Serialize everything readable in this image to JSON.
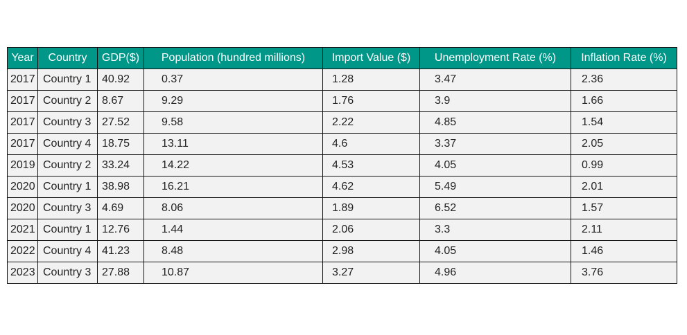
{
  "chart_data": {
    "type": "table",
    "columns": [
      "Year",
      "Country",
      "GDP($)",
      "Population (hundred millions)",
      "Import Value ($)",
      "Unemployment Rate (%)",
      "Inflation Rate (%)"
    ],
    "rows": [
      [
        "2017",
        "Country 1",
        "40.92",
        "0.37",
        "1.28",
        "3.47",
        "2.36"
      ],
      [
        "2017",
        "Country 2",
        "8.67",
        "9.29",
        "1.76",
        "3.9",
        "1.66"
      ],
      [
        "2017",
        "Country 3",
        "27.52",
        "9.58",
        "2.22",
        "4.85",
        "1.54"
      ],
      [
        "2017",
        "Country 4",
        "18.75",
        "13.11",
        "4.6",
        "3.37",
        "2.05"
      ],
      [
        "2019",
        "Country 2",
        "33.24",
        "14.22",
        "4.53",
        "4.05",
        "0.99"
      ],
      [
        "2020",
        "Country 1",
        "38.98",
        "16.21",
        "4.62",
        "5.49",
        "2.01"
      ],
      [
        "2020",
        "Country 3",
        "4.69",
        "8.06",
        "1.89",
        "6.52",
        "1.57"
      ],
      [
        "2021",
        "Country 1",
        "12.76",
        "1.44",
        "2.06",
        "3.3",
        "2.11"
      ],
      [
        "2022",
        "Country 4",
        "41.23",
        "8.48",
        "2.98",
        "4.05",
        "1.46"
      ],
      [
        "2023",
        "Country 3",
        "27.88",
        "10.87",
        "3.27",
        "4.96",
        "3.76"
      ]
    ],
    "header_color": "#009688",
    "header_text_color": "#ffffff",
    "cell_color": "#f2f2f2",
    "border_color": "#111111"
  }
}
